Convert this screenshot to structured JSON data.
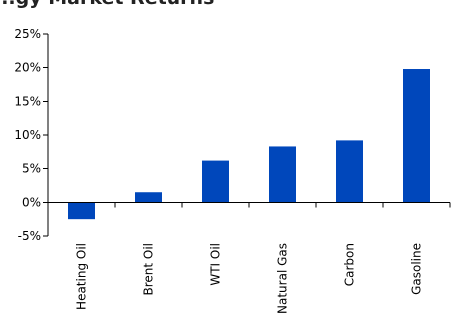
{
  "chart_data": {
    "type": "bar",
    "title": "...gy Market Returns",
    "categories": [
      "Heating Oil",
      "Brent Oil",
      "WTI Oil",
      "Natural Gas",
      "Carbon",
      "Gasoline"
    ],
    "values": [
      -2.5,
      1.5,
      6.2,
      8.3,
      9.2,
      19.8
    ],
    "ylim": [
      -5,
      25
    ],
    "y_ticks": [
      -5,
      0,
      5,
      10,
      15,
      20,
      25
    ],
    "y_tick_labels": [
      "-5%",
      "0%",
      "5%",
      "10%",
      "15%",
      "20%",
      "25%"
    ],
    "xlabel": "",
    "ylabel": "",
    "grid": false,
    "bar_color": "#0047BB"
  }
}
